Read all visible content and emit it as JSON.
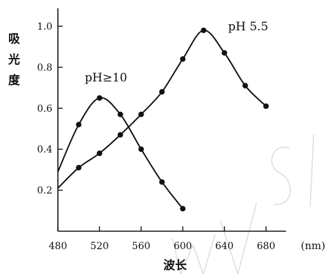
{
  "chart_data": {
    "type": "line",
    "xlabel": "波长",
    "x_unit": "(nm)",
    "ylabel": "吸光度",
    "xlim": [
      480,
      680
    ],
    "ylim": [
      0,
      1.0
    ],
    "x_ticks": [
      480,
      520,
      560,
      600,
      640,
      680
    ],
    "y_ticks": [
      0.2,
      0.4,
      0.6,
      0.8,
      1.0
    ],
    "x_tick_labels": [
      "480",
      "520",
      "560",
      "600",
      "640",
      "680"
    ],
    "y_tick_labels": [
      "0.2",
      "0.4",
      "0.6",
      "0.8",
      "1.0"
    ],
    "grid": false,
    "series": [
      {
        "name": "pH≥10",
        "x": [
          480,
          500,
          520,
          540,
          560,
          580,
          600
        ],
        "y": [
          0.29,
          0.52,
          0.65,
          0.57,
          0.4,
          0.24,
          0.11
        ],
        "markers": [
          false,
          true,
          true,
          true,
          true,
          true,
          true
        ]
      },
      {
        "name": "pH 5.5",
        "x": [
          480,
          500,
          520,
          540,
          560,
          580,
          600,
          620,
          640,
          660,
          680
        ],
        "y": [
          0.21,
          0.31,
          0.38,
          0.47,
          0.57,
          0.68,
          0.84,
          0.98,
          0.87,
          0.71,
          0.61
        ],
        "markers": [
          false,
          true,
          true,
          true,
          true,
          true,
          true,
          true,
          true,
          true,
          true
        ]
      }
    ]
  }
}
